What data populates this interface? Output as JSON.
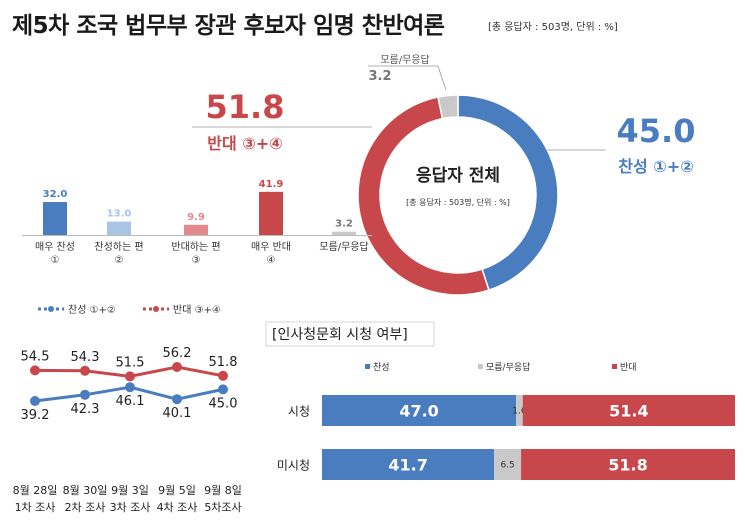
{
  "title": "제5차 조국 법무부 장관 후보자 임명 찬반여론",
  "base_note": "[총 응답자 : 503명, 단위 : %]",
  "colors": {
    "blue": "#4a7cc0",
    "light_blue": "#a9c4e6",
    "red": "#c8474b",
    "light_red": "#e58a8c",
    "gray": "#c9c9c9"
  },
  "chart_data": [
    {
      "type": "pie",
      "center_title": "응답자 전체",
      "center_note": "[총 응답자 : 503명, 단위 : %]",
      "slices": [
        {
          "label": "찬성 ①+②",
          "value": 45.0
        },
        {
          "label": "반대 ③+④",
          "value": 51.8
        },
        {
          "label": "모름/무응답",
          "value": 3.2
        }
      ]
    },
    {
      "type": "bar",
      "categories": [
        "매우 찬성\n①",
        "찬성하는 편\n②",
        "반대하는 편\n③",
        "매우 반대\n④",
        "모름/무응답"
      ],
      "values": [
        32.0,
        13.0,
        9.9,
        41.9,
        3.2
      ],
      "ylim": [
        0,
        45
      ]
    },
    {
      "type": "line",
      "x": [
        "8월 28일\n1차 조사",
        "8월 30일\n2차 조사",
        "9월 3일\n3차 조사",
        "9월 5일\n4차 조사",
        "9월 8일\n5차조사"
      ],
      "series": [
        {
          "name": "찬성 ①+②",
          "values": [
            39.2,
            42.3,
            46.1,
            40.1,
            45.0
          ]
        },
        {
          "name": "반대 ③+④",
          "values": [
            54.5,
            54.3,
            51.5,
            56.2,
            51.8
          ]
        }
      ],
      "legend": "top",
      "ylim": [
        35,
        60
      ]
    },
    {
      "type": "bar",
      "title": "[인사청문회 시청 여부]",
      "stacked": true,
      "orientation": "horizontal",
      "categories": [
        "시청",
        "미시청"
      ],
      "series": [
        {
          "name": "찬성",
          "values": [
            47.0,
            41.7
          ]
        },
        {
          "name": "모름/무응답",
          "values": [
            1.6,
            6.5
          ]
        },
        {
          "name": "반대",
          "values": [
            51.4,
            51.8
          ]
        }
      ],
      "xlim": [
        0,
        100
      ],
      "legend": "top"
    }
  ]
}
